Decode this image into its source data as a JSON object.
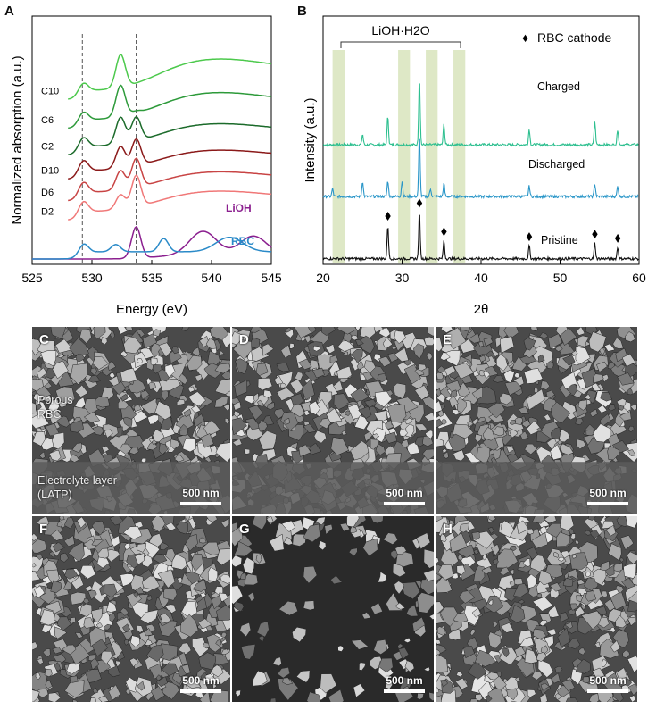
{
  "panels": {
    "a": {
      "letter": "A",
      "ylabel": "Normalized absorption (a.u.)",
      "xlabel": "Energy (eV)",
      "label_lioh": "LiOH",
      "label_rbc": "RBC",
      "colors": {
        "lioh": "#8b1f8f",
        "rbc": "#2a8ac8"
      }
    },
    "b": {
      "letter": "B",
      "ylabel": "Intensity (a.u.)",
      "xlabel": "2θ",
      "band_label": "LiOH·H2O",
      "legend": "RBC cathode",
      "legend_marker": "♦",
      "band_color": "#d8e4bc"
    },
    "sem": [
      {
        "letter": "C",
        "scale": "500 nm",
        "label1": "Porous RBC",
        "label2": "Electrolyte layer (LATP)"
      },
      {
        "letter": "D",
        "scale": "500 nm"
      },
      {
        "letter": "E",
        "scale": "500 nm"
      },
      {
        "letter": "F",
        "scale": "500 nm"
      },
      {
        "letter": "G",
        "scale": "500 nm"
      },
      {
        "letter": "H",
        "scale": "500 nm"
      }
    ]
  },
  "chart_data": [
    {
      "type": "line",
      "panel": "A",
      "xlabel": "Energy (eV)",
      "ylabel": "Normalized absorption (a.u.)",
      "xlim": [
        525,
        545
      ],
      "xticks": [
        525,
        530,
        535,
        540,
        545
      ],
      "reference_lines": [
        529.2,
        533.7
      ],
      "series": [
        {
          "name": "C10",
          "color": "#4cc94c",
          "offset": 6.6,
          "peaks": [
            [
              529.3,
              0.35
            ],
            [
              532.4,
              1.35
            ],
            [
              533.7,
              0.0
            ]
          ],
          "tail": 1.4
        },
        {
          "name": "C6",
          "color": "#2d9a3a",
          "offset": 5.4,
          "peaks": [
            [
              529.3,
              0.35
            ],
            [
              532.4,
              1.3
            ],
            [
              533.7,
              0.1
            ]
          ],
          "tail": 1.2
        },
        {
          "name": "C2",
          "color": "#1c6b2b",
          "offset": 4.3,
          "peaks": [
            [
              529.3,
              0.4
            ],
            [
              532.4,
              1.1
            ],
            [
              533.7,
              1.0
            ]
          ],
          "tail": 1.0
        },
        {
          "name": "D10",
          "color": "#8b1a1a",
          "offset": 3.3,
          "peaks": [
            [
              529.3,
              0.45
            ],
            [
              532.4,
              0.9
            ],
            [
              533.7,
              1.1
            ]
          ],
          "tail": 0.9
        },
        {
          "name": "D6",
          "color": "#c84444",
          "offset": 2.4,
          "peaks": [
            [
              529.3,
              0.45
            ],
            [
              532.4,
              0.8
            ],
            [
              533.7,
              1.2
            ]
          ],
          "tail": 0.9
        },
        {
          "name": "D2",
          "color": "#f07878",
          "offset": 1.6,
          "peaks": [
            [
              529.3,
              0.45
            ],
            [
              532.4,
              0.6
            ],
            [
              533.7,
              1.3
            ]
          ],
          "tail": 0.9
        },
        {
          "name": "LiOH",
          "color": "#8b1f8f",
          "offset": 0.0,
          "peaks": [
            [
              533.7,
              1.3
            ],
            [
              539.3,
              1.0
            ],
            [
              543.5,
              0.8
            ]
          ],
          "tail": 0.0
        },
        {
          "name": "RBC",
          "color": "#2a8ac8",
          "offset": 0.0,
          "peaks": [
            [
              529.3,
              0.4
            ],
            [
              532.0,
              0.3
            ],
            [
              536.0,
              0.55
            ],
            [
              541.5,
              0.6
            ]
          ],
          "tail": 0.0
        }
      ],
      "series_labels": [
        "C10",
        "C6",
        "C2",
        "D10",
        "D6",
        "D2"
      ]
    },
    {
      "type": "line",
      "panel": "B",
      "xlabel": "2θ",
      "ylabel": "Intensity (a.u.)",
      "xlim": [
        20,
        60
      ],
      "xticks": [
        20,
        30,
        40,
        50,
        60
      ],
      "highlight_bands": [
        [
          21.2,
          22.8
        ],
        [
          29.5,
          31.0
        ],
        [
          33.0,
          34.5
        ],
        [
          36.5,
          38.0
        ]
      ],
      "series": [
        {
          "name": "Charged",
          "color": "#2dbf8f",
          "offset": 2.2,
          "peaks": [
            [
              25.0,
              0.2
            ],
            [
              28.2,
              0.55
            ],
            [
              32.2,
              1.3
            ],
            [
              35.3,
              0.4
            ],
            [
              46.1,
              0.3
            ],
            [
              54.4,
              0.45
            ],
            [
              57.3,
              0.3
            ]
          ]
        },
        {
          "name": "Discharged",
          "color": "#2a96c8",
          "offset": 1.2,
          "peaks": [
            [
              21.2,
              0.15
            ],
            [
              25.0,
              0.3
            ],
            [
              28.2,
              0.3
            ],
            [
              30.0,
              0.3
            ],
            [
              32.2,
              1.2
            ],
            [
              33.6,
              0.15
            ],
            [
              35.3,
              0.25
            ],
            [
              46.1,
              0.2
            ],
            [
              54.4,
              0.25
            ],
            [
              57.3,
              0.2
            ]
          ]
        },
        {
          "name": "Pristine",
          "color": "#111111",
          "offset": 0.0,
          "peaks": [
            [
              28.2,
              0.65
            ],
            [
              32.2,
              0.9
            ],
            [
              35.3,
              0.35
            ],
            [
              46.1,
              0.25
            ],
            [
              54.4,
              0.3
            ],
            [
              57.3,
              0.22
            ]
          ]
        }
      ],
      "diamonds_x": [
        28.2,
        32.2,
        35.3,
        46.1,
        54.4,
        57.3
      ]
    }
  ]
}
